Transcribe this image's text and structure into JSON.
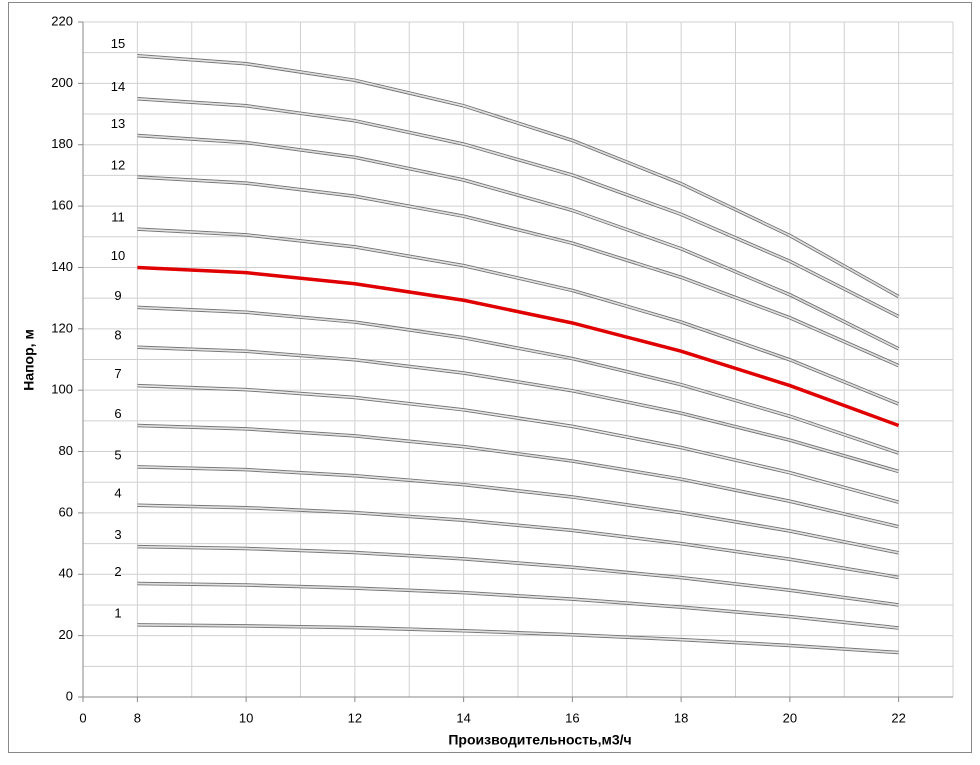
{
  "chart_data": {
    "type": "line",
    "x_label": "Производительность,м3/ч",
    "y_label": "Напор, м",
    "x": [
      8,
      10,
      12,
      14,
      16,
      18,
      20,
      22
    ],
    "xlim": [
      7,
      23
    ],
    "xticks": [
      {
        "value": 7,
        "label": "0"
      },
      8,
      10,
      12,
      14,
      16,
      18,
      20,
      22
    ],
    "x_grid_lines": [
      8,
      9,
      10,
      11,
      12,
      13,
      14,
      15,
      16,
      17,
      18,
      19,
      20,
      21,
      22,
      23
    ],
    "ylim": [
      0,
      220
    ],
    "yticks": [
      0,
      20,
      40,
      60,
      80,
      100,
      120,
      140,
      160,
      180,
      200,
      220
    ],
    "y_grid_lines": [
      10,
      20,
      30,
      40,
      50,
      60,
      70,
      80,
      90,
      100,
      110,
      120,
      130,
      140,
      150,
      160,
      170,
      180,
      190,
      200,
      210,
      220
    ],
    "grid": true,
    "series": [
      {
        "name": "1",
        "color": "#a8a8a8",
        "values": [
          23.5,
          23.2,
          22.6,
          21.6,
          20.3,
          18.7,
          16.8,
          14.5
        ]
      },
      {
        "name": "2",
        "color": "#a8a8a8",
        "values": [
          37,
          36.5,
          35.5,
          34,
          31.9,
          29.3,
          26.2,
          22.5
        ]
      },
      {
        "name": "3",
        "color": "#a8a8a8",
        "values": [
          49,
          48.4,
          47.1,
          45,
          42.3,
          38.9,
          34.8,
          30
        ]
      },
      {
        "name": "4",
        "color": "#a8a8a8",
        "values": [
          62.5,
          61.7,
          60.1,
          57.6,
          54.3,
          50,
          44.9,
          39
        ]
      },
      {
        "name": "5",
        "color": "#a8a8a8",
        "values": [
          75,
          74.1,
          72.1,
          69.2,
          65.2,
          60.1,
          54.1,
          47
        ]
      },
      {
        "name": "6",
        "color": "#a8a8a8",
        "values": [
          88.5,
          87.4,
          85.1,
          81.6,
          76.9,
          71,
          63.8,
          55.5
        ]
      },
      {
        "name": "7",
        "color": "#c4c4c4",
        "values": [
          101.5,
          100.2,
          97.6,
          93.6,
          88.2,
          81.3,
          73.1,
          63.5
        ]
      },
      {
        "name": "8",
        "color": "#a8a8a8",
        "values": [
          114,
          112.7,
          109.9,
          105.6,
          99.8,
          92.5,
          83.7,
          73.5
        ]
      },
      {
        "name": "9",
        "color": "#a8a8a8",
        "values": [
          127,
          125.4,
          122.2,
          117.1,
          110.3,
          101.8,
          91.5,
          79.5
        ]
      },
      {
        "name": "10",
        "color": "#e00000",
        "values": [
          140,
          138.3,
          134.7,
          129.3,
          121.9,
          112.7,
          101.5,
          88.5
        ]
      },
      {
        "name": "11",
        "color": "#a8a8a8",
        "values": [
          152.5,
          150.6,
          146.7,
          140.6,
          132.5,
          122.2,
          109.9,
          95.5
        ]
      },
      {
        "name": "12",
        "color": "#a8a8a8",
        "values": [
          169.5,
          167.5,
          163.2,
          156.7,
          147.9,
          136.8,
          123.6,
          108
        ]
      },
      {
        "name": "13",
        "color": "#a8a8a8",
        "values": [
          183,
          180.7,
          175.9,
          168.5,
          158.6,
          146.1,
          131.1,
          113.5
        ]
      },
      {
        "name": "14",
        "color": "#a8a8a8",
        "values": [
          195,
          192.7,
          187.8,
          180.2,
          170.1,
          157.3,
          142,
          124
        ]
      },
      {
        "name": "15",
        "color": "#a8a8a8",
        "values": [
          209,
          206.4,
          201,
          192.7,
          181.4,
          167.3,
          150.4,
          130.5
        ]
      }
    ]
  }
}
